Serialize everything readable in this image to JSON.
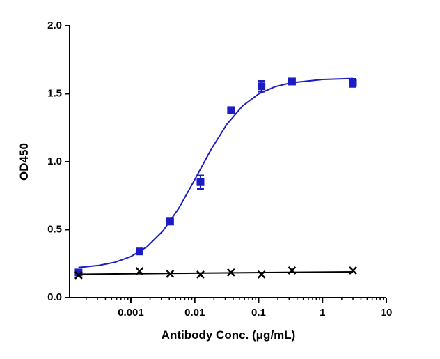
{
  "chart_data": {
    "type": "scatter",
    "xlabel": "Antibody Conc. (μg/mL)",
    "ylabel": "OD450",
    "xscale": "log",
    "minor_ticks": true,
    "xlim": [
      0.00011,
      10
    ],
    "xticks": [
      0.001,
      0.01,
      0.1,
      1,
      10
    ],
    "ylim": [
      0,
      2
    ],
    "yticks": [
      {
        "value": 0,
        "label": "0.0"
      },
      0.5,
      {
        "value": 1,
        "label": "1.0"
      },
      1.5,
      {
        "value": 2,
        "label": "2.0"
      }
    ],
    "series": [
      {
        "color": "#1c1cc4",
        "marker": "square",
        "x": [
          0.000152,
          0.00137,
          0.00412,
          0.0123,
          0.037,
          0.111,
          0.333,
          3
        ],
        "values": [
          0.185,
          0.34,
          0.56,
          0.85,
          1.38,
          1.555,
          1.59,
          1.58
        ],
        "errors": [
          null,
          null,
          null,
          0.05,
          null,
          0.04,
          null,
          0.03
        ],
        "curve": {
          "x": [
            0.000151,
            0.000316,
            0.000562,
            0.001,
            0.00178,
            0.00316,
            0.00562,
            0.01,
            0.0178,
            0.0316,
            0.0562,
            0.1,
            0.178,
            0.316,
            1,
            3
          ],
          "values": [
            0.222,
            0.237,
            0.26,
            0.302,
            0.374,
            0.489,
            0.657,
            0.868,
            1.086,
            1.274,
            1.411,
            1.499,
            1.551,
            1.58,
            1.605,
            1.612
          ]
        }
      },
      {
        "color": "#000000",
        "marker": "cross",
        "x": [
          0.000152,
          0.00137,
          0.00412,
          0.0123,
          0.037,
          0.111,
          0.333,
          3
        ],
        "values": [
          0.165,
          0.195,
          0.175,
          0.17,
          0.185,
          0.17,
          0.2,
          0.2
        ],
        "curve": {
          "x": [
            0.000151,
            0.01,
            3
          ],
          "values": [
            0.172,
            0.18,
            0.19
          ]
        }
      }
    ]
  }
}
